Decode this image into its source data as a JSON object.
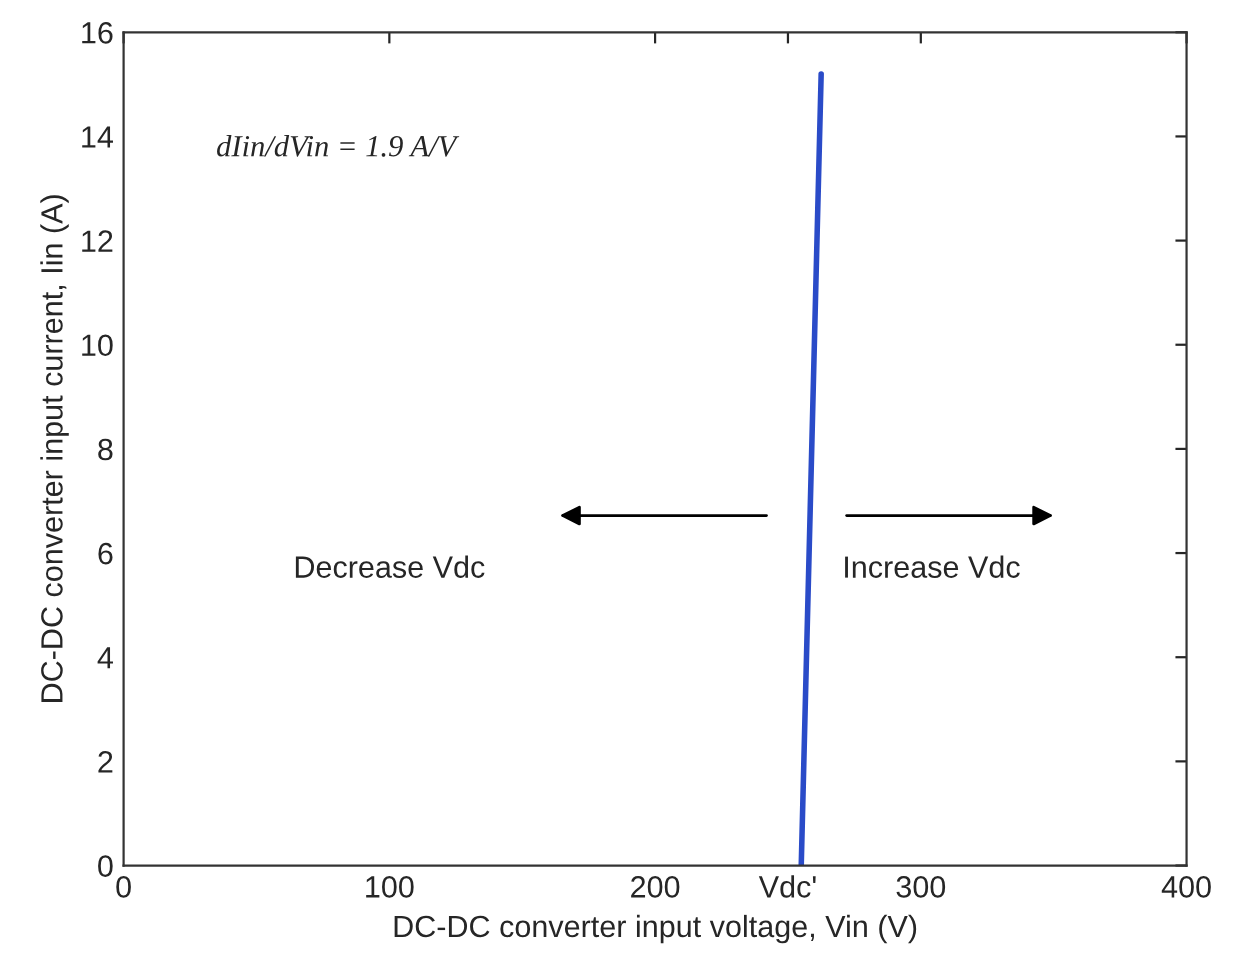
{
  "chart_data": {
    "type": "line",
    "xlabel": "DC-DC converter input voltage, Vin (V)",
    "ylabel": "DC-DC converter input current, Iin (A)",
    "x": [
      255,
      262.5
    ],
    "series": [
      {
        "color": "#2a4bc8",
        "values": [
          0,
          15.2
        ]
      }
    ],
    "xlim": [
      0,
      400
    ],
    "xticks": [
      0,
      100,
      200,
      {
        "value": 250,
        "label": "Vdc'"
      },
      300,
      400
    ],
    "ylim": [
      0,
      16
    ],
    "yticks": [
      0,
      2,
      4,
      6,
      8,
      10,
      12,
      14,
      16
    ],
    "grid": false,
    "legend": false,
    "marker": "none",
    "line_style": "solid",
    "annotations": [
      "dIin/dVin = 1.9 A/V",
      "Decrease Vdc",
      "Increase Vdc"
    ]
  }
}
